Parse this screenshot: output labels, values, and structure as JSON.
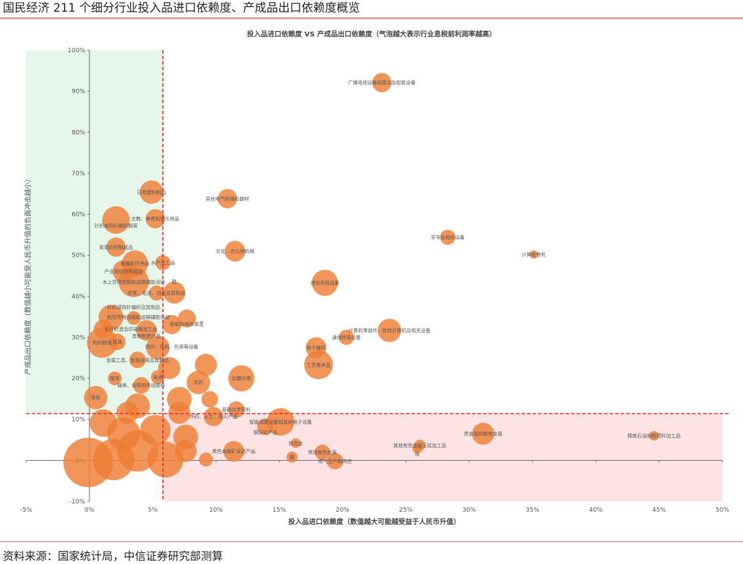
{
  "header": {
    "title": "国民经济 211 个细分行业投入品进口依赖度、产成品出口依赖度概览"
  },
  "footer": {
    "source": "资料来源：国家统计局，中信证券研究部测算"
  },
  "chart_data": {
    "type": "scatter",
    "title": "投入品进口依赖度 VS 产成品出口依赖度（气泡越大表示行业息税前利润率越高）",
    "xlabel": "投入品进口依赖度（数值越大可能越受益于人民币升值）",
    "ylabel": "产成品出口依赖度（数值越小可能受人民币升值的负面冲击越小）",
    "xlim": [
      -5,
      50
    ],
    "ylim": [
      -10,
      100
    ],
    "x_ticks": [
      "-5%",
      "0%",
      "5%",
      "10%",
      "15%",
      "20%",
      "25%",
      "30%",
      "35%",
      "40%",
      "45%",
      "50%"
    ],
    "y_ticks": [
      "-10%",
      "0%",
      "10%",
      "20%",
      "30%",
      "40%",
      "50%",
      "60%",
      "70%",
      "80%",
      "90%",
      "100%"
    ],
    "units": "%",
    "grid": false,
    "thresholds": {
      "x": 5.8,
      "y": 11.4,
      "line_color": "#E8262B"
    },
    "regions": [
      {
        "name": "high-export-low-import",
        "color": "#E6F6EB",
        "x": [
          -5,
          5.8
        ],
        "y": [
          11.4,
          100
        ]
      },
      {
        "name": "low-export-high-import",
        "color": "#FDE3E4",
        "x": [
          5.8,
          50
        ],
        "y": [
          -10,
          11.4
        ]
      }
    ],
    "bubble_color": "#EE7E35",
    "points": [
      {
        "label": "广播电视设备和雷达及配套设备",
        "x": 23.1,
        "y": 92.1,
        "z": 1.4
      },
      {
        "label": "非专业视听设备",
        "x": 28.3,
        "y": 54.4,
        "z": 1.1
      },
      {
        "label": "计算机整机",
        "x": 35.1,
        "y": 50.2,
        "z": 0.6
      },
      {
        "label": "其他电气机械和器材",
        "x": 10.9,
        "y": 63.8,
        "z": 1.4
      },
      {
        "label": "文化、办公用机械",
        "x": 11.5,
        "y": 51.0,
        "z": 1.5
      },
      {
        "label": "通信系统设备",
        "x": 18.6,
        "y": 43.3,
        "z": 1.9
      },
      {
        "label": "计算机零部件、其他计算机及相关设备",
        "x": 23.7,
        "y": 31.7,
        "z": 1.7
      },
      {
        "label": "通信终端设备",
        "x": 20.3,
        "y": 30.0,
        "z": 1.1
      },
      {
        "label": "电子器件",
        "x": 17.9,
        "y": 27.5,
        "z": 1.5
      },
      {
        "label": "工艺美术品",
        "x": 18.1,
        "y": 23.3,
        "z": 2.1
      },
      {
        "label": "仪器仪表",
        "x": 12.0,
        "y": 20.0,
        "z": 1.9
      },
      {
        "label": "日用塑料制品",
        "x": 4.9,
        "y": 65.4,
        "z": 1.7
      },
      {
        "label": "文教、体育和娱乐用品",
        "x": 5.2,
        "y": 58.9,
        "z": 1.4
      },
      {
        "label": "针织或钩针编织服装",
        "x": 2.1,
        "y": 58.6,
        "z": 2.0
      },
      {
        "label": "家用纺织制成品",
        "x": 2.1,
        "y": 52.0,
        "z": 1.4
      },
      {
        "label": "金属制日用品",
        "x": 3.6,
        "y": 48.0,
        "z": 1.9
      },
      {
        "label": "水产加工品",
        "x": 5.8,
        "y": 48.2,
        "z": 1.1
      },
      {
        "label": "产业用纺织制成品",
        "x": 2.7,
        "y": 46.1,
        "z": 1.6
      },
      {
        "label": "水上货物运输和运输辅助活动",
        "x": 3.5,
        "y": 43.5,
        "z": 2.2
      },
      {
        "label": "皮革、毛皮、羽毛及其制品",
        "x": 5.3,
        "y": 40.8,
        "z": 1.1
      },
      {
        "label": "鞋",
        "x": 6.7,
        "y": 40.9,
        "z": 1.6
      },
      {
        "label": "航空货物运输和运输辅助活动",
        "x": 1.7,
        "y": 34.9,
        "z": 1.8
      },
      {
        "label": "针织或钩针编织及其制品",
        "x": 3.5,
        "y": 34.7,
        "z": 1.0
      },
      {
        "label": "化纤织造及印染精加工品",
        "x": 1.1,
        "y": 32.0,
        "z": 1.4
      },
      {
        "label": "其他制造产品",
        "x": 4.5,
        "y": 31.7,
        "z": 1.5
      },
      {
        "label": "烘炉、风机、包装等设备",
        "x": 6.5,
        "y": 33.1,
        "z": 1.4
      },
      {
        "label": "船舶及相关装置",
        "x": 7.7,
        "y": 34.6,
        "z": 1.3
      },
      {
        "label": "机织服装",
        "x": 1.0,
        "y": 28.7,
        "z": 2.2
      },
      {
        "label": "家具",
        "x": 2.2,
        "y": 28.9,
        "z": 1.2
      },
      {
        "label": "金属工具、金属丝绳及其制品",
        "x": 3.8,
        "y": 24.5,
        "z": 1.2
      },
      {
        "label": "电池",
        "x": 5.4,
        "y": 20.3,
        "z": 1.0
      },
      {
        "label": "服饰",
        "x": 2.0,
        "y": 20.0,
        "z": 1.0
      },
      {
        "label": "轴承、齿轮和传动部件",
        "x": 4.1,
        "y": 18.3,
        "z": 1.2
      },
      {
        "label": "农药",
        "x": 8.6,
        "y": 19.0,
        "z": 1.7
      },
      {
        "label": "零售",
        "x": 0.5,
        "y": 15.3,
        "z": 1.7
      },
      {
        "label": "基础化学原料",
        "x": 11.6,
        "y": 12.4,
        "z": 1.2
      },
      {
        "label": "炸药、火工、焰火产品",
        "x": 9.8,
        "y": 10.7,
        "z": 1.4
      },
      {
        "label": "智能消费设备和其他电子设备",
        "x": 15.1,
        "y": 9.4,
        "z": 2.0
      },
      {
        "label": "钢压延产品",
        "x": 13.9,
        "y": 8.2,
        "z": 1.2
      },
      {
        "label": "铁合金",
        "x": 16.3,
        "y": 4.2,
        "z": 0.7
      },
      {
        "label": "钢",
        "x": 16.0,
        "y": 0.8,
        "z": 0.8
      },
      {
        "label": "常用有色金属",
        "x": 18.4,
        "y": 2.0,
        "z": 1.1
      },
      {
        "label": "燃气生产和供应",
        "x": 19.4,
        "y": -0.2,
        "z": 1.2
      },
      {
        "label": "黑色金属矿采选产品",
        "x": 11.4,
        "y": 2.2,
        "z": 1.5
      },
      {
        "label": "其他有色金属压延加工品",
        "x": 26.1,
        "y": 3.7,
        "z": 0.8
      },
      {
        "label": "铁",
        "x": 25.9,
        "y": 2.9,
        "z": 0.7
      },
      {
        "label": "贵金属和稀有金属",
        "x": 31.1,
        "y": 6.5,
        "z": 1.6
      },
      {
        "label": "精炼石油和核燃料加工品",
        "x": 44.6,
        "y": 6.0,
        "z": 0.7
      },
      {
        "label": "",
        "x": -0.1,
        "y": -0.5,
        "z": 3.6
      },
      {
        "label": "",
        "x": 1.9,
        "y": 0.2,
        "z": 3.0
      },
      {
        "label": "",
        "x": 3.8,
        "y": 2.3,
        "z": 3.0
      },
      {
        "label": "",
        "x": 6.0,
        "y": 0.2,
        "z": 2.6
      },
      {
        "label": "",
        "x": 2.7,
        "y": 6.5,
        "z": 2.4
      },
      {
        "label": "",
        "x": 5.2,
        "y": 7.4,
        "z": 2.2
      },
      {
        "label": "",
        "x": 1.1,
        "y": 9.1,
        "z": 2.0
      },
      {
        "label": "",
        "x": 7.6,
        "y": 5.7,
        "z": 1.8
      },
      {
        "label": "",
        "x": 9.2,
        "y": 0.2,
        "z": 1.0
      },
      {
        "label": "",
        "x": 7.1,
        "y": 11.6,
        "z": 1.6
      },
      {
        "label": "",
        "x": 3.8,
        "y": 13.3,
        "z": 1.8
      },
      {
        "label": "",
        "x": 7.1,
        "y": 14.9,
        "z": 1.8
      },
      {
        "label": "",
        "x": 9.2,
        "y": 23.3,
        "z": 1.6
      },
      {
        "label": "",
        "x": 5.4,
        "y": 27.5,
        "z": 1.7
      },
      {
        "label": "",
        "x": 6.3,
        "y": 22.5,
        "z": 1.6
      },
      {
        "label": "",
        "x": 3.0,
        "y": 11.6,
        "z": 1.6
      },
      {
        "label": "",
        "x": 9.5,
        "y": 14.9,
        "z": 1.2
      },
      {
        "label": "",
        "x": 7.6,
        "y": 2.3,
        "z": 1.6
      }
    ]
  }
}
